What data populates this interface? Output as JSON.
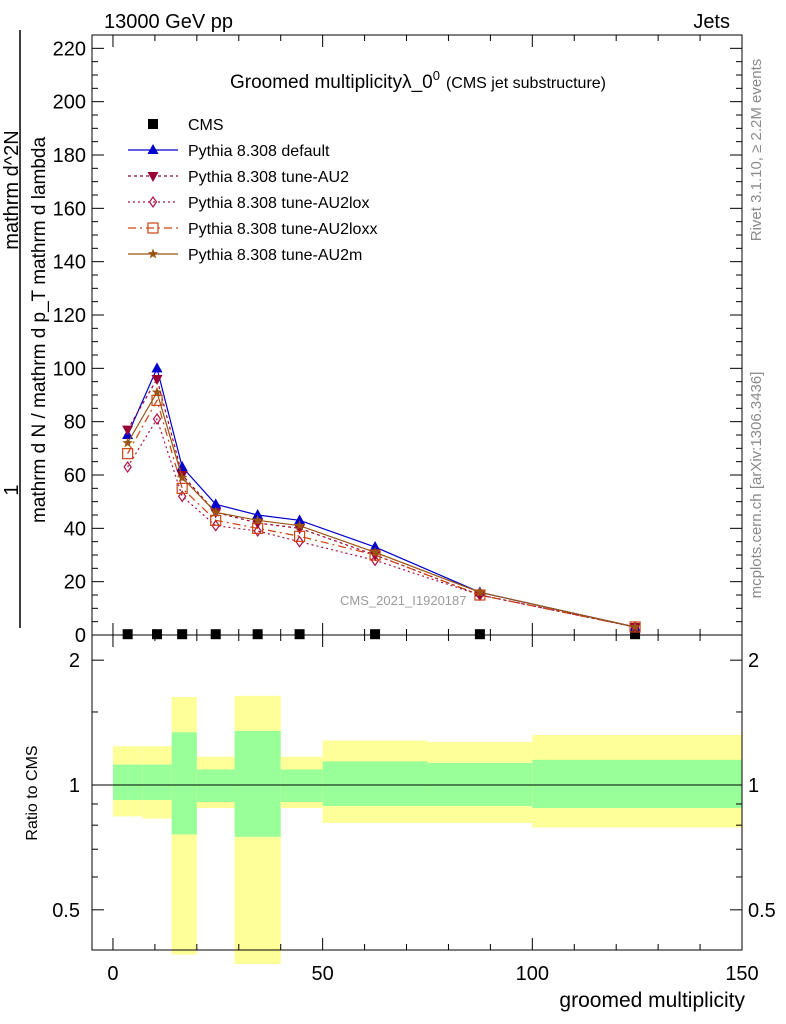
{
  "header": {
    "left": "13000 GeV pp",
    "right": "Jets"
  },
  "side_labels": {
    "rivet": "Rivet 3.1.10, ≥ 2.2M events",
    "mcplots": "mcplots.cern.ch [arXiv:1306.3436]"
  },
  "watermark": "CMS_2021_I1920187",
  "chart_data": [
    {
      "type": "line",
      "title": "Groomed multiplicity",
      "title_symbol": "λ_0",
      "title_sup": "0",
      "title_note": "(CMS jet substructure)",
      "ylabel_numerator": "1",
      "ylabel_denominator": "mathrm d N / mathrm d p_T mathrm d lambda",
      "ylabel_top": "mathrm d^2N",
      "ylabel_right": "mathrm d p_T mathrm d lambda",
      "ylabel_sub": "T",
      "xlabel": "groomed multiplicity",
      "xlim": [
        -5,
        150
      ],
      "ylim": [
        0,
        225
      ],
      "x_ticks": [
        0,
        50,
        100,
        150
      ],
      "y_ticks": [
        0,
        20,
        40,
        60,
        80,
        100,
        120,
        140,
        160,
        180,
        200,
        220
      ],
      "legend_position": "top-left",
      "x": [
        3.5,
        10.5,
        16.5,
        24.5,
        34.5,
        44.5,
        62.5,
        87.5,
        124.5
      ],
      "series": [
        {
          "name": "CMS",
          "color": "#000000",
          "marker": "square",
          "dash": "none",
          "values": [
            0.3,
            0.3,
            0.3,
            0.3,
            0.3,
            0.3,
            0.3,
            0.3,
            0.3
          ]
        },
        {
          "name": "Pythia 8.308 default",
          "color": "#0000cc",
          "marker": "triangle-up",
          "dash": "solid",
          "values": [
            75,
            100,
            63,
            49,
            45,
            43,
            33,
            16,
            3
          ]
        },
        {
          "name": "Pythia 8.308 tune-AU2",
          "color": "#990033",
          "marker": "triangle-down",
          "dash": "3,3",
          "values": [
            77,
            96,
            60,
            46,
            42,
            40,
            30,
            15,
            3
          ]
        },
        {
          "name": "Pythia 8.308 tune-AU2lox",
          "color": "#aa1144",
          "marker": "diamond-open",
          "dash": "2,3",
          "values": [
            63,
            81,
            52,
            41,
            39,
            35,
            28,
            15,
            3
          ]
        },
        {
          "name": "Pythia 8.308 tune-AU2loxx",
          "color": "#cc4411",
          "marker": "square-open",
          "dash": "8,4,2,4",
          "values": [
            68,
            88,
            55,
            43,
            40,
            37,
            30,
            15,
            3
          ]
        },
        {
          "name": "Pythia 8.308 tune-AU2m",
          "color": "#995511",
          "marker": "star",
          "dash": "solid",
          "values": [
            72,
            91,
            59,
            46,
            43,
            41,
            31,
            16,
            3
          ]
        }
      ]
    },
    {
      "type": "area",
      "ylabel": "Ratio to CMS",
      "xlim": [
        -5,
        150
      ],
      "ylim": [
        0.4,
        2.3
      ],
      "y_scale": "log",
      "y_ticks": [
        0.5,
        1,
        2
      ],
      "y_tick_labels": [
        "0.5",
        "1",
        "2"
      ],
      "reference_line": 1,
      "bins": [
        [
          0,
          7
        ],
        [
          7,
          14
        ],
        [
          14,
          20
        ],
        [
          20,
          29
        ],
        [
          29,
          40
        ],
        [
          40,
          50
        ],
        [
          50,
          75
        ],
        [
          75,
          100
        ],
        [
          100,
          150
        ]
      ],
      "band_inner": {
        "color": "#99ff99",
        "lo": [
          0.92,
          0.92,
          0.76,
          0.91,
          0.75,
          0.91,
          0.89,
          0.89,
          0.88
        ],
        "hi": [
          1.12,
          1.12,
          1.34,
          1.09,
          1.35,
          1.09,
          1.14,
          1.13,
          1.15
        ]
      },
      "band_outer": {
        "color": "#ffff99",
        "lo": [
          0.84,
          0.83,
          0.39,
          0.88,
          0.37,
          0.88,
          0.81,
          0.81,
          0.79
        ],
        "hi": [
          1.24,
          1.24,
          1.63,
          1.17,
          1.64,
          1.17,
          1.28,
          1.27,
          1.32
        ]
      }
    }
  ]
}
